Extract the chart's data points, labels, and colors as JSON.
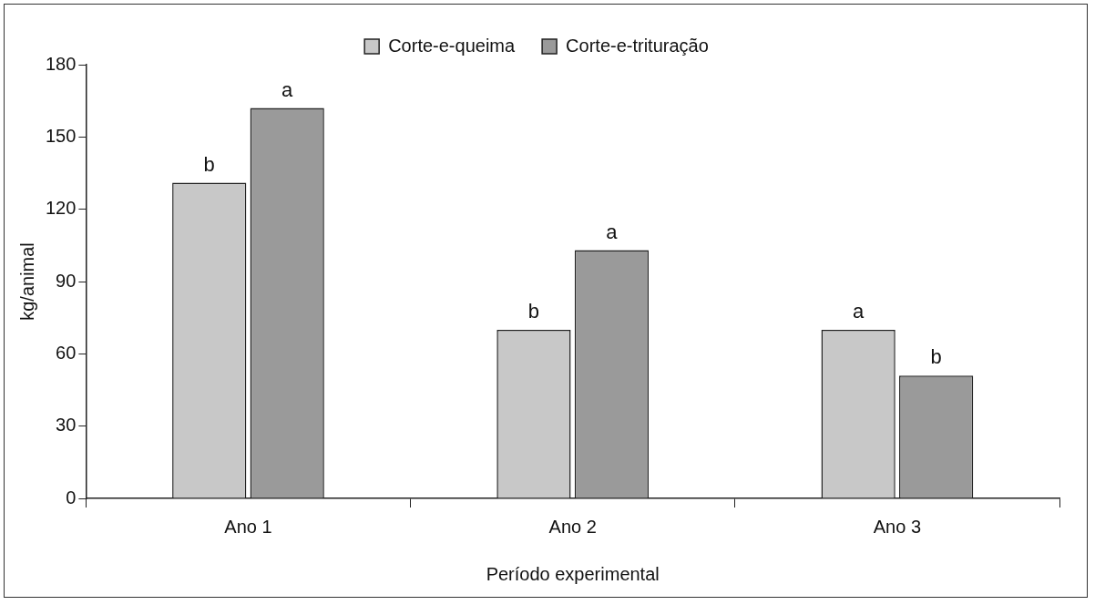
{
  "chart_data": {
    "type": "bar",
    "xlabel": "Período experimental",
    "ylabel": "kg/animal",
    "categories": [
      "Ano 1",
      "Ano 2",
      "Ano 3"
    ],
    "series": [
      {
        "name": "Corte-e-queima",
        "color": "#c8c8c8",
        "values": [
          131,
          70,
          70
        ],
        "value_labels": [
          "b",
          "b",
          "a"
        ]
      },
      {
        "name": "Corte-e-trituração",
        "color": "#9a9a9a",
        "values": [
          162,
          103,
          51
        ],
        "value_labels": [
          "a",
          "a",
          "b"
        ]
      }
    ],
    "ylim": [
      0,
      180
    ],
    "yticks": [
      0,
      30,
      60,
      90,
      120,
      150,
      180
    ],
    "grid": false,
    "legend": "top"
  }
}
